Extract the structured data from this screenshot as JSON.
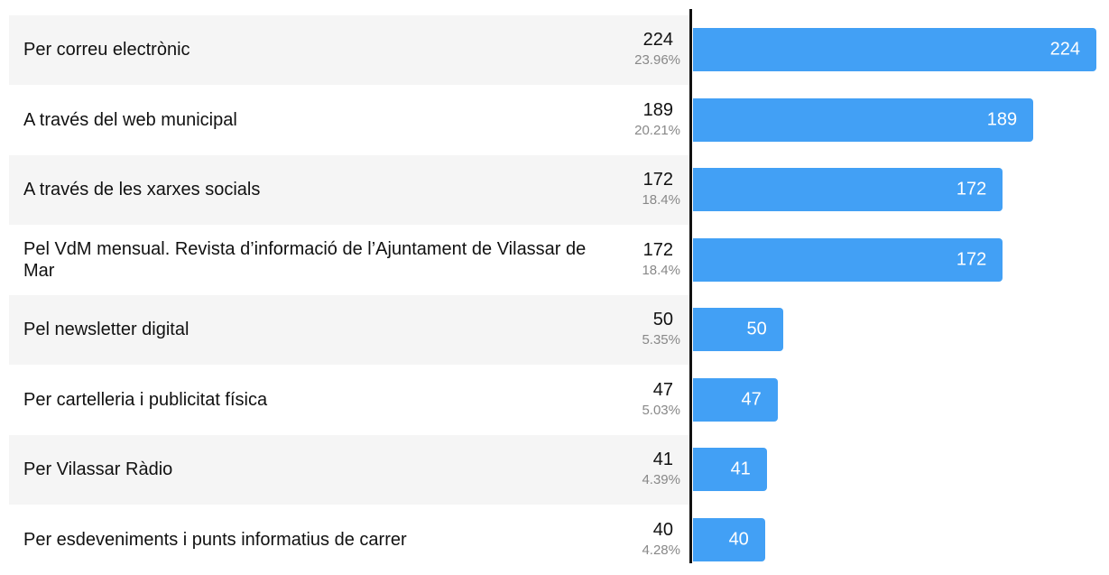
{
  "chart_data": {
    "type": "bar",
    "orientation": "horizontal",
    "color": "#42a0f5",
    "categories": [
      "Per correu electrònic",
      "A través del web municipal",
      "A través de les xarxes socials",
      "Pel VdM mensual. Revista d’informació de l’Ajuntament de Vilassar de Mar",
      "Pel newsletter digital",
      "Per cartelleria i publicitat física",
      "Per Vilassar Ràdio",
      "Per esdeveniments i punts informatius de carrer"
    ],
    "values": [
      224,
      189,
      172,
      172,
      50,
      47,
      41,
      40
    ],
    "share_labels": [
      "23.96%",
      "20.21%",
      "18.4%",
      "18.4%",
      "5.35%",
      "5.03%",
      "4.39%",
      "4.28%"
    ]
  }
}
